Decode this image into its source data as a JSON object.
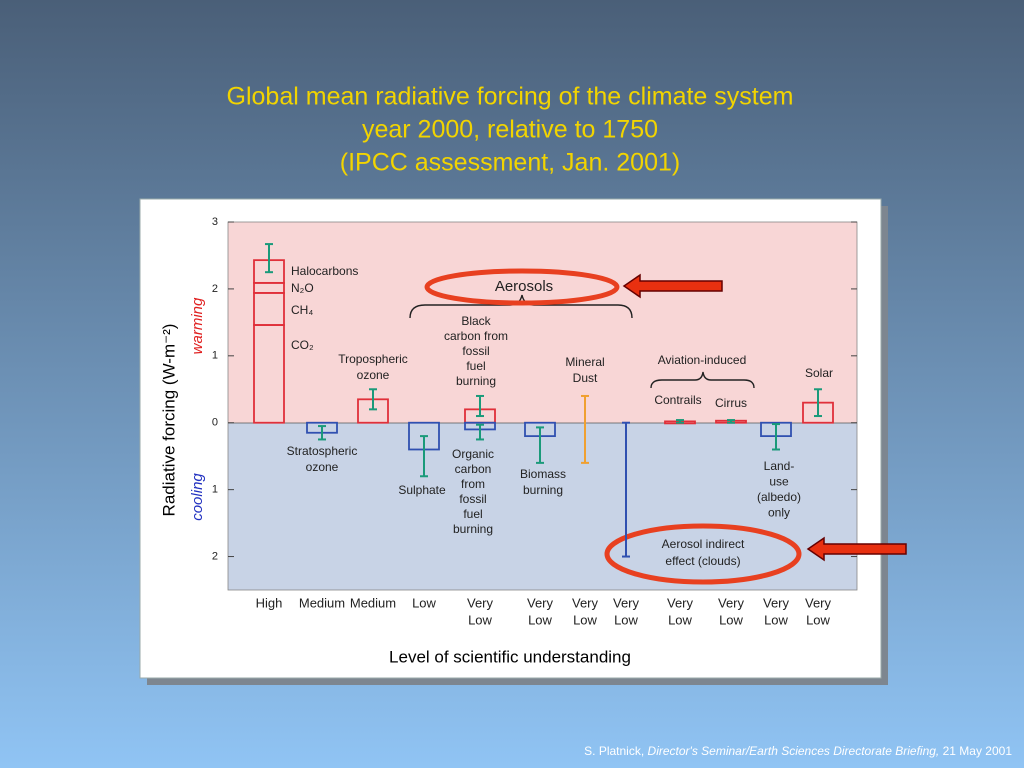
{
  "chart_data": {
    "type": "bar",
    "title": [
      "Global mean radiative forcing of the climate system",
      "year 2000, relative to 1750",
      "(IPCC assessment, Jan. 2001)"
    ],
    "ylabel": "Radiative forcing (W-m⁻²)",
    "xlabel": "Level of scientific understanding",
    "warming": "warming",
    "cooling": "cooling",
    "aerosols": "Aerosols",
    "aviation": "Aviation-induced",
    "ylim": [
      -2.5,
      3
    ],
    "yticks": [
      3,
      2,
      1,
      0,
      {
        "value": -1,
        "label": "1"
      },
      {
        "value": -2,
        "label": "2"
      }
    ],
    "error_color": "#1a9a7a",
    "categories": [
      [
        "High"
      ],
      [
        "Medium"
      ],
      [
        "Medium"
      ],
      [
        "Low"
      ],
      [
        "Very",
        "Low"
      ],
      [
        "Very",
        "Low"
      ],
      [
        "Very",
        "Low"
      ],
      [
        "Very",
        "Low"
      ],
      [
        "Very",
        "Low"
      ],
      [
        "Very",
        "Low"
      ],
      [
        "Very",
        "Low"
      ],
      [
        "Very",
        "Low"
      ]
    ],
    "agents": [
      {
        "color": "#e0303a",
        "stack": [
          {
            "label": "CO₂",
            "value": 1.46
          },
          {
            "label": "CH₄",
            "value": 0.48
          },
          {
            "label": "N₂O",
            "value": 0.15
          },
          {
            "label": "Halocarbons",
            "value": 0.34
          }
        ],
        "range": [
          2.25,
          2.67
        ]
      },
      {
        "color": "#3050b0",
        "bars": [
          {
            "label": [
              "Stratospheric",
              "ozone"
            ],
            "value": -0.15,
            "range": [
              -0.25,
              -0.05
            ]
          }
        ]
      },
      {
        "color": "#e0303a",
        "bars": [
          {
            "label": [
              "Tropospheric",
              "ozone"
            ],
            "value": 0.35,
            "range": [
              0.2,
              0.5
            ]
          }
        ]
      },
      {
        "color": "#3050b0",
        "bars": [
          {
            "label": [
              "Sulphate"
            ],
            "value": -0.4,
            "range": [
              -0.8,
              -0.2
            ]
          }
        ]
      },
      {
        "color": "#e0303a",
        "bars": [
          {
            "label": [
              "Black",
              "carbon from",
              "fossil",
              "fuel",
              "burning"
            ],
            "value": 0.2,
            "range": [
              0.1,
              0.4
            ]
          },
          {
            "label": [
              "Organic",
              "carbon",
              "from",
              "fossil",
              "fuel",
              "burning"
            ],
            "value": -0.1,
            "range": [
              -0.25,
              -0.03
            ],
            "color": "#3050b0"
          }
        ]
      },
      {
        "color": "#3050b0",
        "bars": [
          {
            "label": [
              "Biomass",
              "burning"
            ],
            "value": -0.2,
            "range": [
              -0.6,
              -0.07
            ]
          }
        ]
      },
      {
        "color": "#f0a030",
        "bars": [
          {
            "label": [
              "Mineral",
              "Dust"
            ],
            "value": null,
            "range": [
              -0.6,
              0.4
            ]
          }
        ]
      },
      {
        "color": "#3050b0",
        "bars": [
          {
            "label": [
              "Aerosol indirect",
              "effect (clouds)"
            ],
            "value": null,
            "range": [
              -2,
              0
            ]
          }
        ]
      },
      {
        "color": "#e0303a",
        "bars": [
          {
            "label": [
              "Contrails"
            ],
            "value": 0.02,
            "range": [
              0,
              0.04
            ]
          }
        ]
      },
      {
        "color": "#e0303a",
        "bars": [
          {
            "label": [
              "Cirrus"
            ],
            "value": 0.03,
            "range": [
              0,
              0.04
            ]
          }
        ]
      },
      {
        "color": "#3050b0",
        "bars": [
          {
            "label": [
              "Land-",
              "use",
              "(albedo)",
              "only"
            ],
            "value": -0.2,
            "range": [
              -0.4,
              -0.02
            ]
          }
        ]
      },
      {
        "color": "#e0303a",
        "bars": [
          {
            "label": [
              "Solar"
            ],
            "value": 0.3,
            "range": [
              0.1,
              0.5
            ]
          }
        ]
      }
    ]
  },
  "footer": {
    "author": "S. Platnick,",
    "venue": "Director's Seminar/Earth Sciences Directorate Briefing,",
    "date": "21 May 2001"
  }
}
